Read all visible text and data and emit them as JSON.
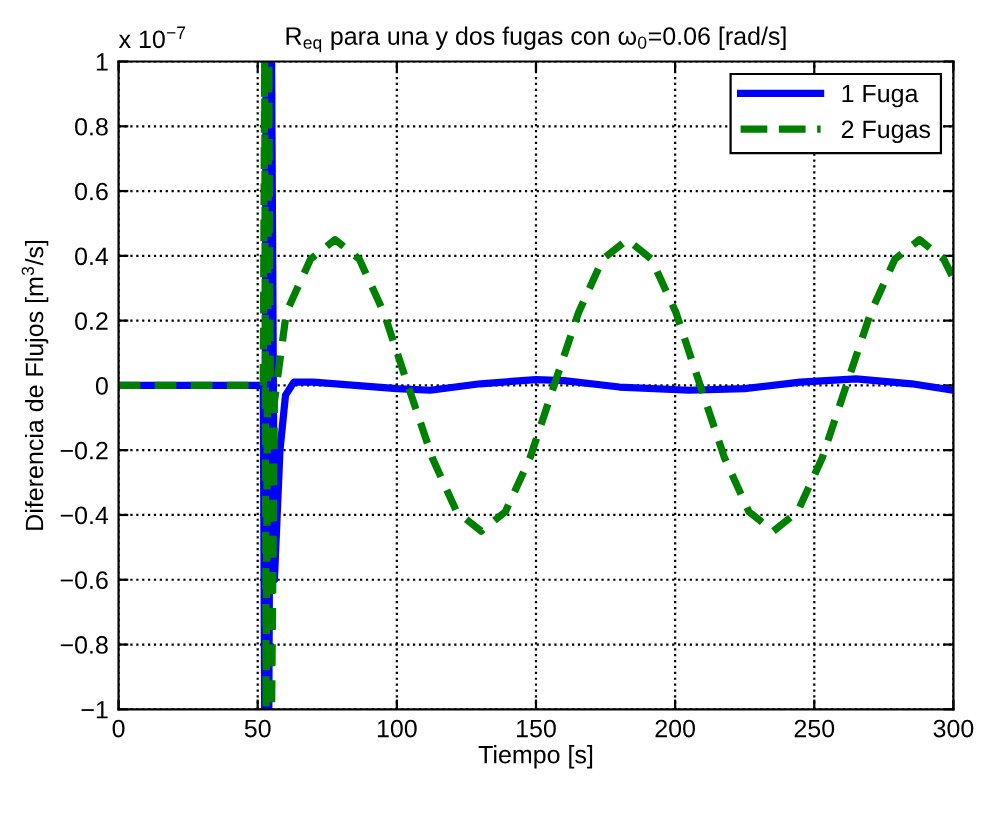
{
  "chart_data": {
    "type": "line",
    "title": "R$_{eq}$ para una y dos fugas con ω$_{0}$=0.06 [rad/s]",
    "xlabel": "Tiempo [s]",
    "ylabel": "Diferencia de Flujos [m$^{3}$/s]",
    "annotations": [
      "x 10$^{−7}$"
    ],
    "xlim": [
      0,
      300
    ],
    "xticks": [
      0,
      50,
      100,
      150,
      200,
      250,
      300
    ],
    "ylim": [
      -1,
      1
    ],
    "yticks": [
      {
        "value": -1,
        "label": "−1"
      },
      {
        "value": -0.8,
        "label": "−0.8"
      },
      {
        "value": -0.6,
        "label": "−0.6"
      },
      {
        "value": -0.4,
        "label": "−0.4"
      },
      {
        "value": -0.2,
        "label": "−0.2"
      },
      0,
      0.2,
      0.4,
      0.6,
      0.8,
      1
    ],
    "grid": true,
    "legend": "top right",
    "series": [
      {
        "name": "1 Fuga",
        "color": "#0000ff",
        "line_style": "solid",
        "x": [
          0,
          52,
          52.5,
          53,
          54,
          55,
          56,
          58,
          60,
          63,
          70,
          85,
          100,
          112,
          130,
          150,
          160,
          180,
          205,
          225,
          245,
          265,
          285,
          300
        ],
        "values": [
          0,
          0,
          -1,
          1,
          -1,
          1,
          -0.6,
          -0.2,
          -0.03,
          0.01,
          0.01,
          0,
          -0.01,
          -0.015,
          0.005,
          0.018,
          0.015,
          -0.005,
          -0.015,
          -0.01,
          0.01,
          0.02,
          0.005,
          -0.015
        ]
      },
      {
        "name": "2 Fugas",
        "color": "#008000",
        "line_style": "dashed",
        "x": [
          0,
          52,
          52.5,
          53,
          54,
          55,
          56,
          60.3,
          69,
          77.8,
          86.5,
          95.3,
          104,
          112.8,
          121.5,
          130.3,
          139,
          147.8,
          156.5,
          165.3,
          174,
          182.8,
          191.5,
          200.3,
          209,
          217.8,
          226.5,
          235.3,
          244,
          252.8,
          261.5,
          270.3,
          279,
          287.8,
          296.5,
          300
        ],
        "values": [
          0,
          0,
          1,
          -1,
          1,
          -1,
          -0.05,
          0.225,
          0.39,
          0.45,
          0.39,
          0.225,
          0,
          -0.225,
          -0.39,
          -0.45,
          -0.39,
          -0.225,
          0,
          0.225,
          0.39,
          0.45,
          0.39,
          0.225,
          0,
          -0.225,
          -0.39,
          -0.45,
          -0.39,
          -0.225,
          0,
          0.225,
          0.39,
          0.45,
          0.39,
          0.33
        ]
      }
    ]
  }
}
